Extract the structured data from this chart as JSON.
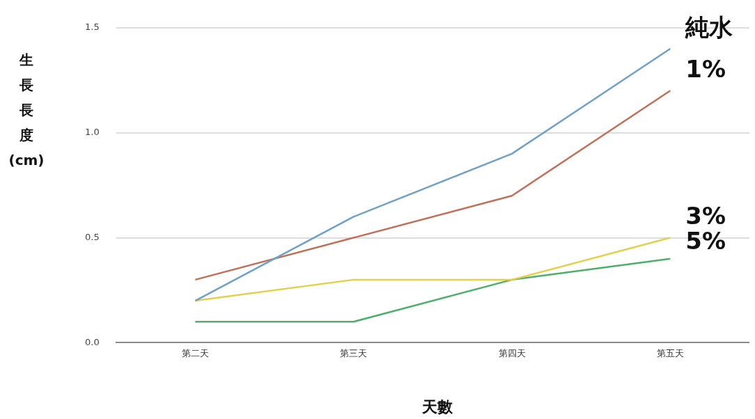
{
  "chart_data": {
    "type": "line",
    "xlabel": "天數",
    "ylabel": "生長長度 (cm)",
    "categories": [
      "第二天",
      "第三天",
      "第四天",
      "第五天"
    ],
    "series": [
      {
        "name": "純水",
        "color": "#6fa0c8",
        "values": [
          0.2,
          0.6,
          0.9,
          1.4
        ]
      },
      {
        "name": "1%",
        "color": "#c0705a",
        "values": [
          0.3,
          0.5,
          0.7,
          1.2
        ]
      },
      {
        "name": "3%",
        "color": "#e2d04a",
        "values": [
          0.2,
          0.3,
          0.3,
          0.5
        ]
      },
      {
        "name": "5%",
        "color": "#4caf6a",
        "values": [
          0.1,
          0.1,
          0.3,
          0.4
        ]
      }
    ],
    "ylim": [
      0,
      1.5
    ],
    "yticks": [
      {
        "value": 0,
        "label": "0.0"
      },
      {
        "value": 0.5,
        "label": "0.5"
      },
      {
        "value": 1,
        "label": "1.0"
      },
      {
        "value": 1.5,
        "label": "1.5"
      }
    ],
    "grid": "y",
    "legend": false,
    "marker": "none",
    "line_style": "solid"
  }
}
